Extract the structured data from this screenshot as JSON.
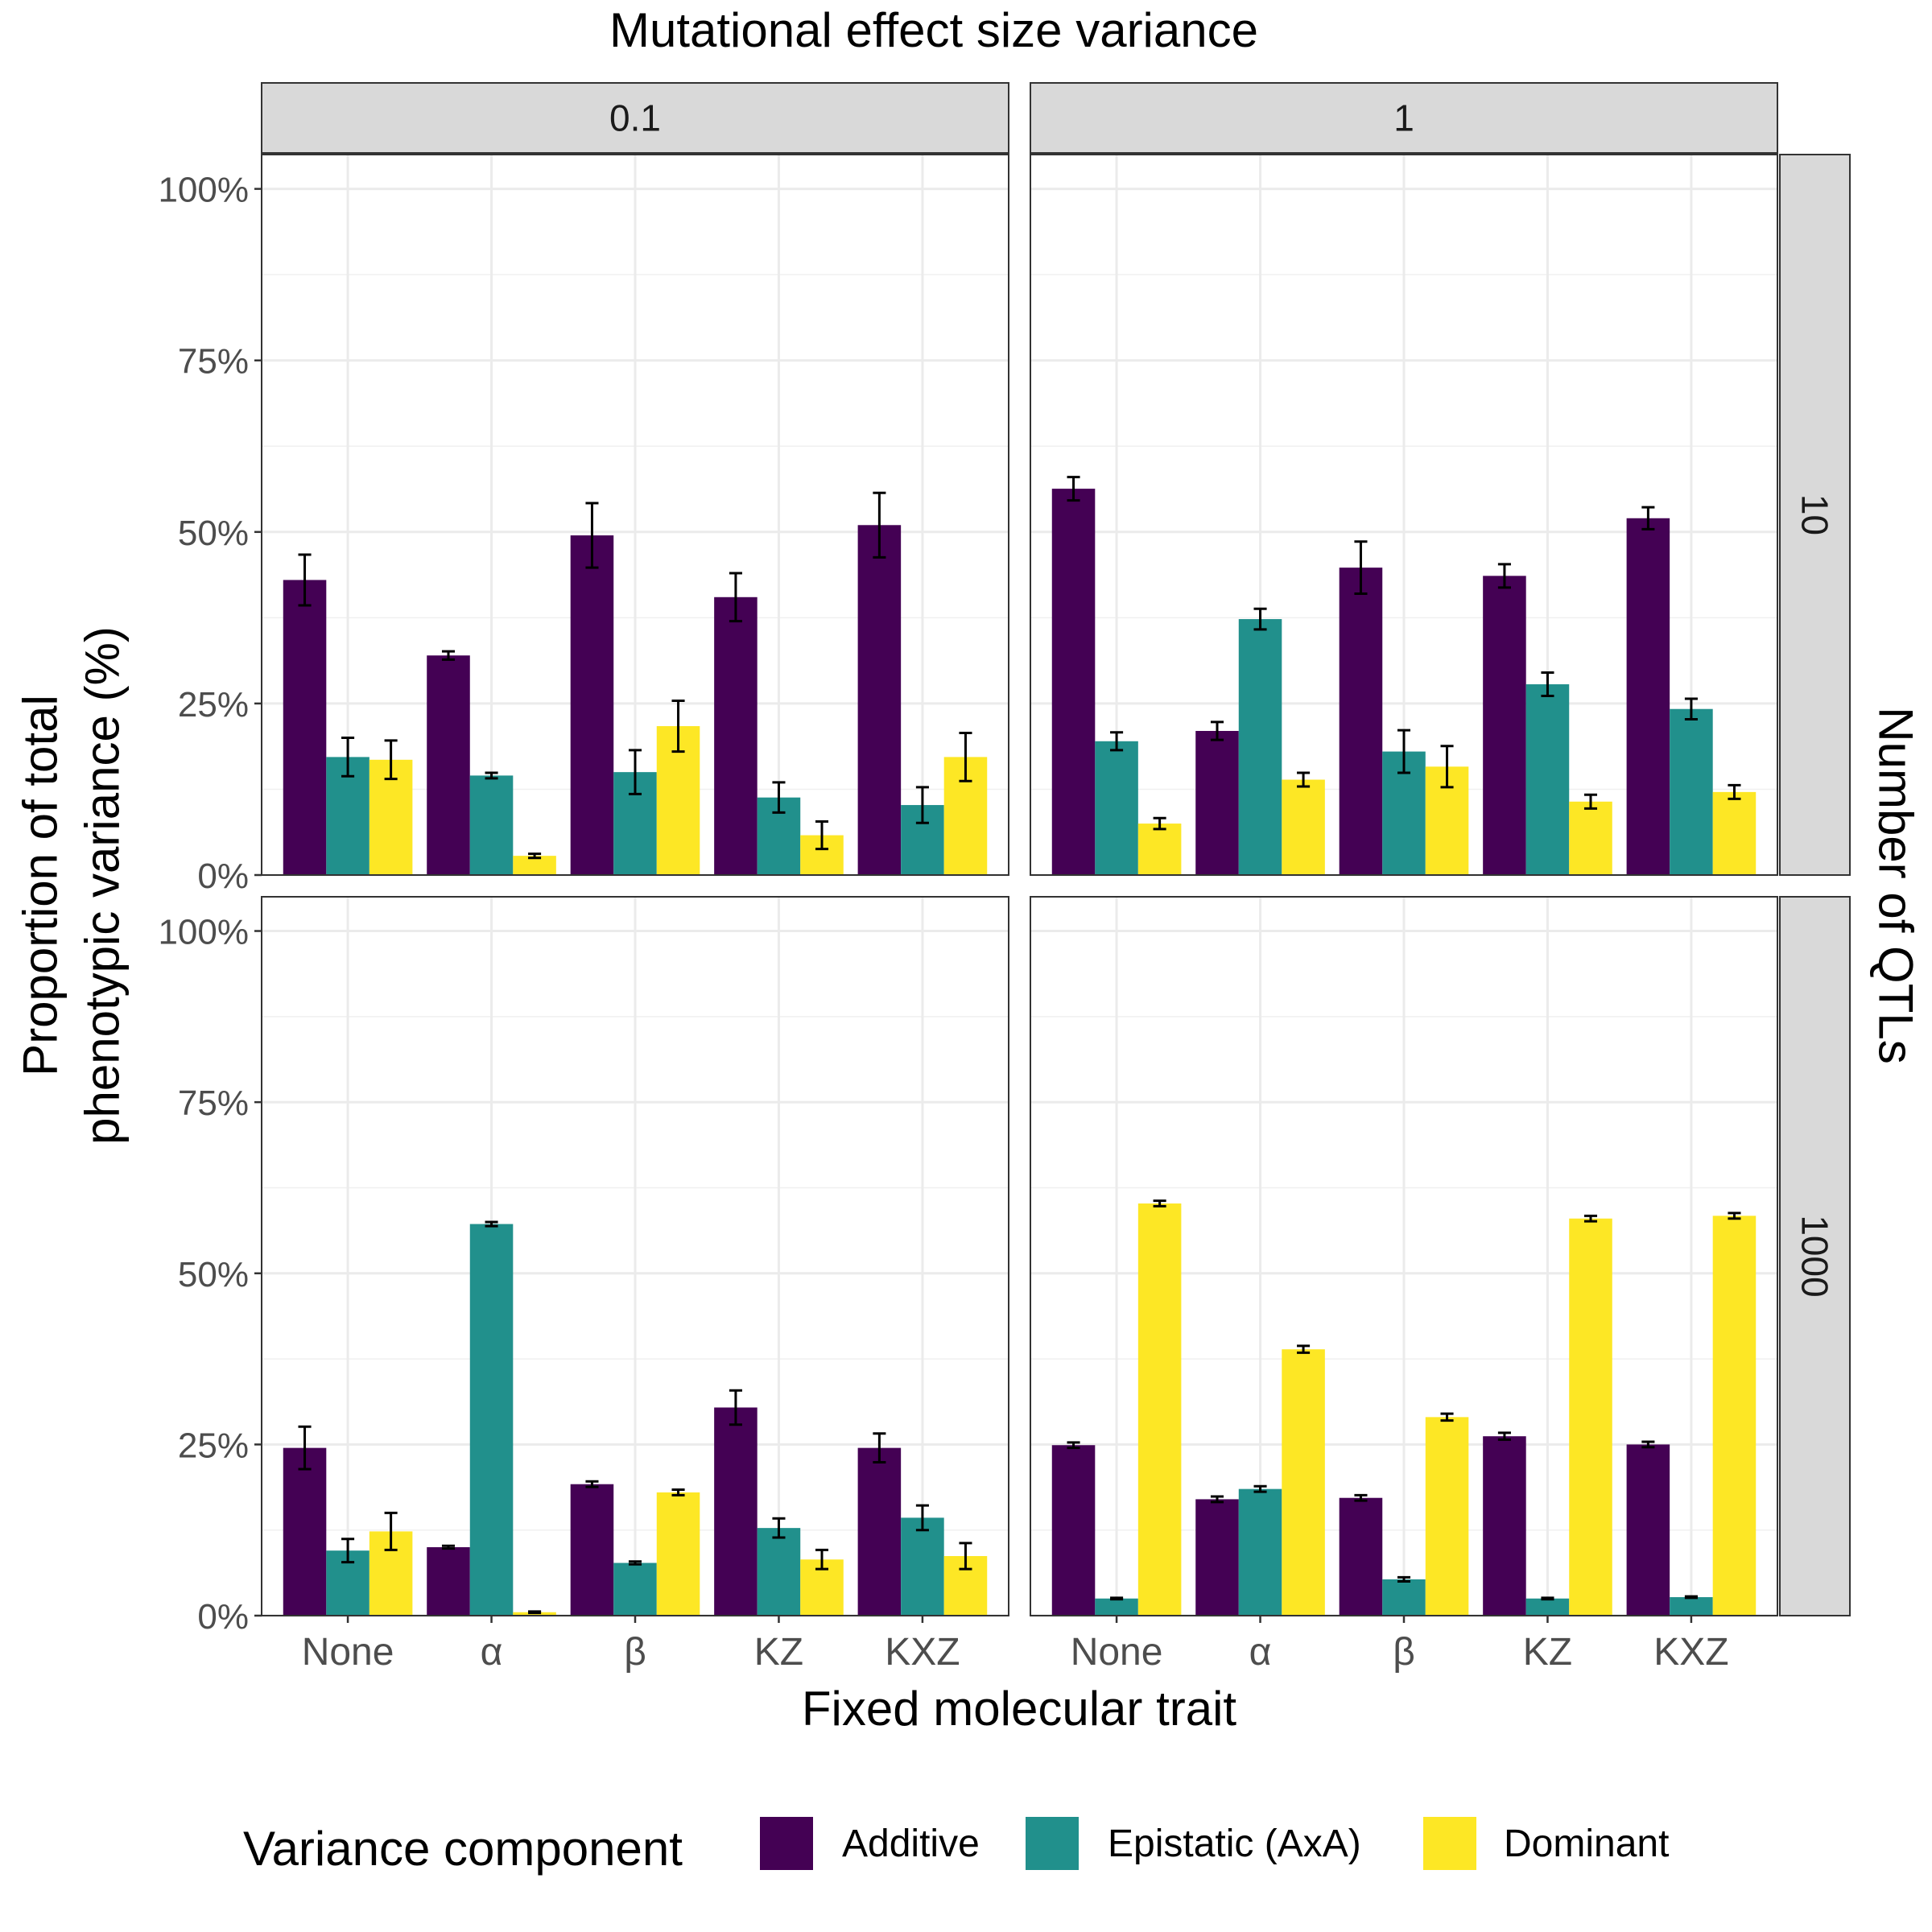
{
  "chart_data": {
    "type": "bar",
    "title": "Mutational effect size variance",
    "xlabel": "Fixed molecular trait",
    "ylabel_lines": [
      "Proportion of total",
      "phenotypic variance (%)"
    ],
    "row_strip_title": "Number of QTLs",
    "categories": [
      "None",
      "α",
      "β",
      "KZ",
      "KXZ"
    ],
    "col_facets": [
      "0.1",
      "1"
    ],
    "row_facets": [
      "10",
      "1000"
    ],
    "y_ticks": [
      "0%",
      "25%",
      "50%",
      "75%",
      "100%"
    ],
    "ylim": [
      0,
      1.05
    ],
    "grid": true,
    "legend": {
      "title": "Variance component",
      "position": "bottom",
      "items": [
        "Additive",
        "Epistatic (AxA)",
        "Dominant"
      ]
    },
    "colors": {
      "Additive": "#440154",
      "Epistatic (AxA)": "#21908C",
      "Dominant": "#FDE725"
    },
    "panels": [
      {
        "col": "0.1",
        "row": "10",
        "series": [
          {
            "name": "Additive",
            "values": [
              0.43,
              0.32,
              0.495,
              0.405,
              0.51
            ],
            "err": [
              0.037,
              0.006,
              0.047,
              0.035,
              0.047
            ]
          },
          {
            "name": "Epistatic (AxA)",
            "values": [
              0.172,
              0.145,
              0.15,
              0.113,
              0.102
            ],
            "err": [
              0.028,
              0.004,
              0.032,
              0.022,
              0.026
            ]
          },
          {
            "name": "Dominant",
            "values": [
              0.168,
              0.028,
              0.217,
              0.058,
              0.172
            ],
            "err": [
              0.028,
              0.003,
              0.037,
              0.02,
              0.035
            ]
          }
        ]
      },
      {
        "col": "1",
        "row": "10",
        "series": [
          {
            "name": "Additive",
            "values": [
              0.563,
              0.21,
              0.448,
              0.436,
              0.52
            ],
            "err": [
              0.017,
              0.013,
              0.038,
              0.017,
              0.016
            ]
          },
          {
            "name": "Epistatic (AxA)",
            "values": [
              0.195,
              0.373,
              0.18,
              0.278,
              0.242
            ],
            "err": [
              0.013,
              0.015,
              0.031,
              0.017,
              0.015
            ]
          },
          {
            "name": "Dominant",
            "values": [
              0.075,
              0.139,
              0.158,
              0.107,
              0.121
            ],
            "err": [
              0.008,
              0.01,
              0.03,
              0.01,
              0.01
            ]
          }
        ]
      },
      {
        "col": "0.1",
        "row": "1000",
        "series": [
          {
            "name": "Additive",
            "values": [
              0.245,
              0.1,
              0.192,
              0.304,
              0.245
            ],
            "err": [
              0.031,
              0.002,
              0.004,
              0.025,
              0.021
            ]
          },
          {
            "name": "Epistatic (AxA)",
            "values": [
              0.095,
              0.572,
              0.077,
              0.128,
              0.143
            ],
            "err": [
              0.017,
              0.003,
              0.002,
              0.014,
              0.018
            ]
          },
          {
            "name": "Dominant",
            "values": [
              0.123,
              0.005,
              0.18,
              0.082,
              0.087
            ],
            "err": [
              0.027,
              0.001,
              0.004,
              0.014,
              0.019
            ]
          }
        ]
      },
      {
        "col": "1",
        "row": "1000",
        "series": [
          {
            "name": "Additive",
            "values": [
              0.249,
              0.17,
              0.172,
              0.262,
              0.25
            ],
            "err": [
              0.004,
              0.004,
              0.004,
              0.005,
              0.004
            ]
          },
          {
            "name": "Epistatic (AxA)",
            "values": [
              0.025,
              0.185,
              0.053,
              0.025,
              0.027
            ],
            "err": [
              0.001,
              0.004,
              0.003,
              0.001,
              0.001
            ]
          },
          {
            "name": "Dominant",
            "values": [
              0.602,
              0.389,
              0.29,
              0.58,
              0.584
            ],
            "err": [
              0.004,
              0.005,
              0.005,
              0.004,
              0.004
            ]
          }
        ]
      }
    ]
  }
}
